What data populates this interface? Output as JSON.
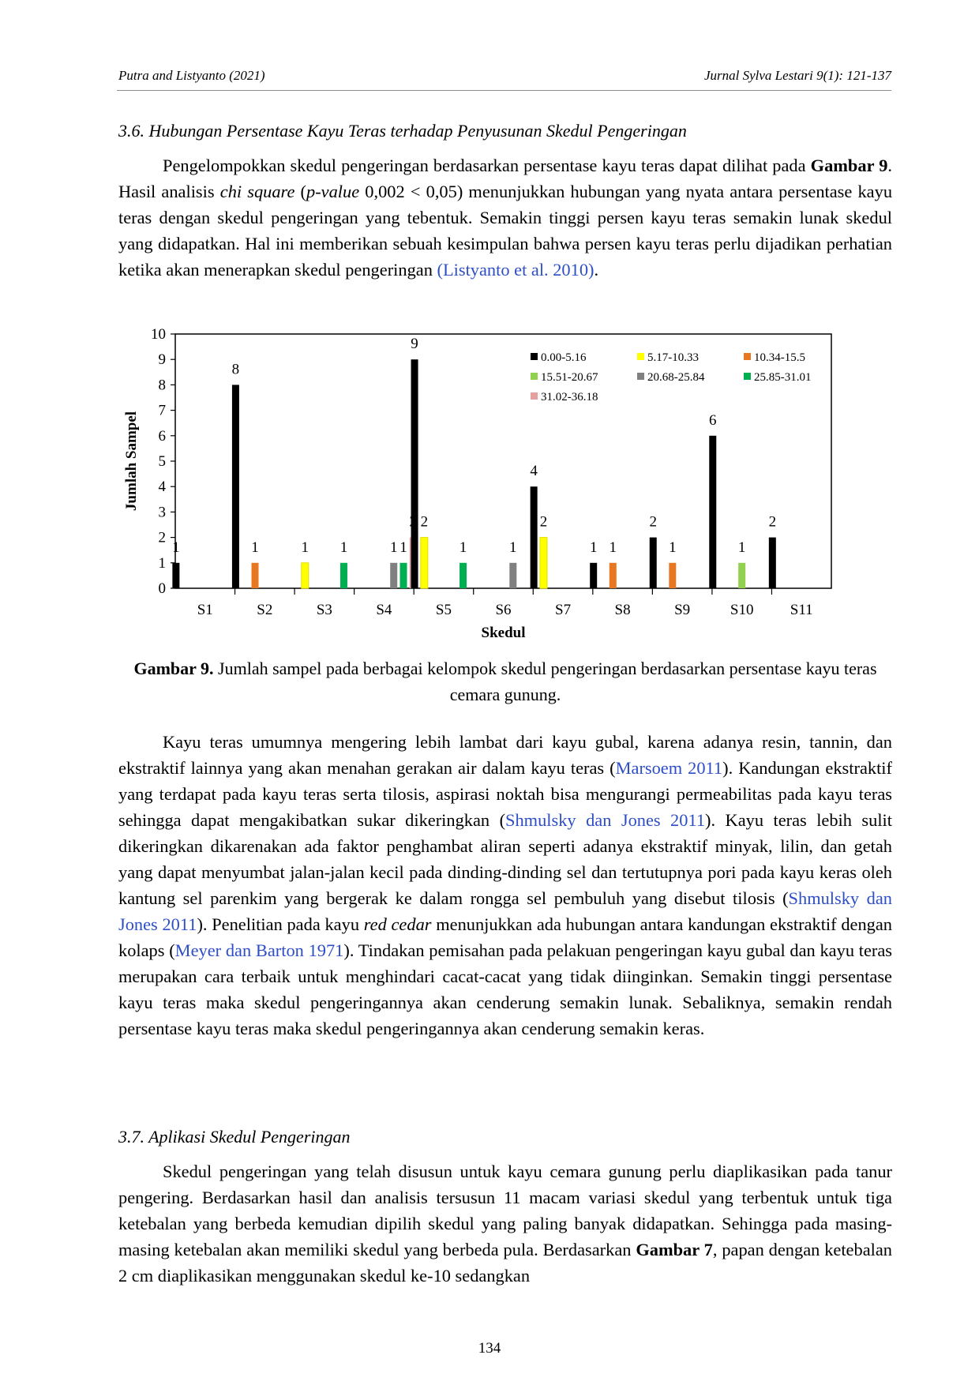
{
  "header": {
    "left": "Putra and Listyanto (2021)",
    "right": "Jurnal Sylva Lestari 9(1): 121-137"
  },
  "section36": {
    "title": "3.6. Hubungan Persentase Kayu Teras terhadap Penyusunan Skedul Pengeringan",
    "p1_a": "Pengelompokkan skedul pengeringan berdasarkan persentase kayu teras dapat dilihat pada ",
    "p1_fig": "Gambar 9",
    "p1_b": ". Hasil analisis ",
    "p1_chi": "chi square",
    "p1_c": " (",
    "p1_pval": "p-value",
    "p1_d": " 0,002 < 0,05) menunjukkan hubungan yang nyata antara persentase kayu teras dengan skedul pengeringan yang tebentuk. Semakin tinggi persen kayu teras semakin lunak skedul yang didapatkan. Hal ini memberikan sebuah kesimpulan bahwa persen kayu teras perlu dijadikan perhatian ketika akan menerapkan skedul pengeringan ",
    "p1_cite": "(Listyanto et al. 2010)",
    "p1_e": "."
  },
  "figure": {
    "caption_label": "Gambar 9.",
    "caption_text": " Jumlah sampel pada berbagai kelompok skedul pengeringan berdasarkan persentase kayu teras  cemara gunung."
  },
  "chart_data": {
    "type": "bar",
    "xlabel": "Skedul",
    "ylabel": "Jumlah Sampel",
    "ylim": [
      0,
      10
    ],
    "yticks": [
      0,
      1,
      2,
      3,
      4,
      5,
      6,
      7,
      8,
      9,
      10
    ],
    "grid": false,
    "legend_position": "top-right",
    "categories": [
      "S1",
      "S2",
      "S3",
      "S4",
      "S5",
      "S6",
      "S7",
      "S8",
      "S9",
      "S10",
      "S11"
    ],
    "series": [
      {
        "name": "0.00-5.16",
        "color": "#000000",
        "values": [
          1,
          8,
          0,
          0,
          9,
          0,
          4,
          1,
          2,
          6,
          2
        ]
      },
      {
        "name": "5.17-10.33",
        "color": "#ffff00",
        "values": [
          0,
          0,
          1,
          0,
          2,
          0,
          2,
          0,
          0,
          0,
          0
        ]
      },
      {
        "name": "10.34-15.5",
        "color": "#e87722",
        "values": [
          0,
          1,
          0,
          0,
          0,
          0,
          0,
          1,
          1,
          0,
          0
        ]
      },
      {
        "name": "15.51-20.67",
        "color": "#92d050",
        "values": [
          0,
          0,
          0,
          0,
          0,
          0,
          0,
          0,
          0,
          1,
          0
        ]
      },
      {
        "name": "20.68-25.84",
        "color": "#808080",
        "values": [
          0,
          0,
          0,
          1,
          0,
          1,
          0,
          0,
          0,
          0,
          0
        ]
      },
      {
        "name": "25.85-31.01",
        "color": "#00b050",
        "values": [
          0,
          0,
          1,
          1,
          1,
          0,
          0,
          0,
          0,
          0,
          0
        ]
      },
      {
        "name": "31.02-36.18",
        "color": "#e6a0a0",
        "values": [
          0,
          0,
          0,
          2,
          0,
          0,
          0,
          0,
          0,
          0,
          0
        ]
      }
    ]
  },
  "paragraph2": {
    "a": "Kayu teras umumnya mengering lebih lambat dari kayu gubal, karena adanya resin, tannin, dan ekstraktif lainnya yang akan menahan gerakan air dalam kayu teras (",
    "cite1": "Marsoem 2011",
    "b": "). Kandungan ekstraktif yang terdapat pada kayu teras serta tilosis, aspirasi noktah bisa mengurangi permeabilitas pada kayu teras sehingga dapat mengakibatkan sukar dikeringkan (",
    "cite2": "Shmulsky dan Jones 2011",
    "c": "). Kayu teras lebih sulit dikeringkan dikarenakan ada faktor penghambat aliran seperti adanya ekstraktif minyak, lilin, dan getah yang dapat menyumbat jalan-jalan kecil pada dinding-dinding sel dan tertutupnya pori pada kayu keras oleh kantung sel parenkim yang bergerak ke dalam rongga sel pembuluh yang disebut tilosis (",
    "cite3": "Shmulsky dan Jones 2011",
    "d": "). Penelitian pada kayu ",
    "redcedar": "red cedar",
    "e": " menunjukkan ada hubungan antara kandungan ekstraktif dengan kolaps (",
    "cite4": "Meyer dan Barton 1971",
    "f": "). Tindakan pemisahan pada pelakuan pengeringan kayu gubal dan kayu teras merupakan cara terbaik untuk menghindari cacat-cacat yang tidak diinginkan. Semakin tinggi persentase kayu teras maka skedul pengeringannya akan cenderung semakin lunak. Sebaliknya, semakin rendah persentase kayu teras maka skedul pengeringannya akan cenderung semakin keras."
  },
  "section37": {
    "title": "3.7. Aplikasi Skedul Pengeringan",
    "a": "Skedul pengeringan yang telah disusun untuk kayu cemara gunung perlu diaplikasikan pada tanur pengering. Berdasarkan hasil dan analisis tersusun 11 macam variasi skedul yang terbentuk untuk tiga ketebalan yang berbeda kemudian dipilih skedul yang paling banyak didapatkan. Sehingga pada masing-masing ketebalan akan memiliki skedul yang berbeda pula. Berdasarkan ",
    "fig": "Gambar 7",
    "b": ", papan dengan ketebalan 2 cm diaplikasikan menggunakan skedul ke-10 sedangkan"
  },
  "page_number": "134"
}
